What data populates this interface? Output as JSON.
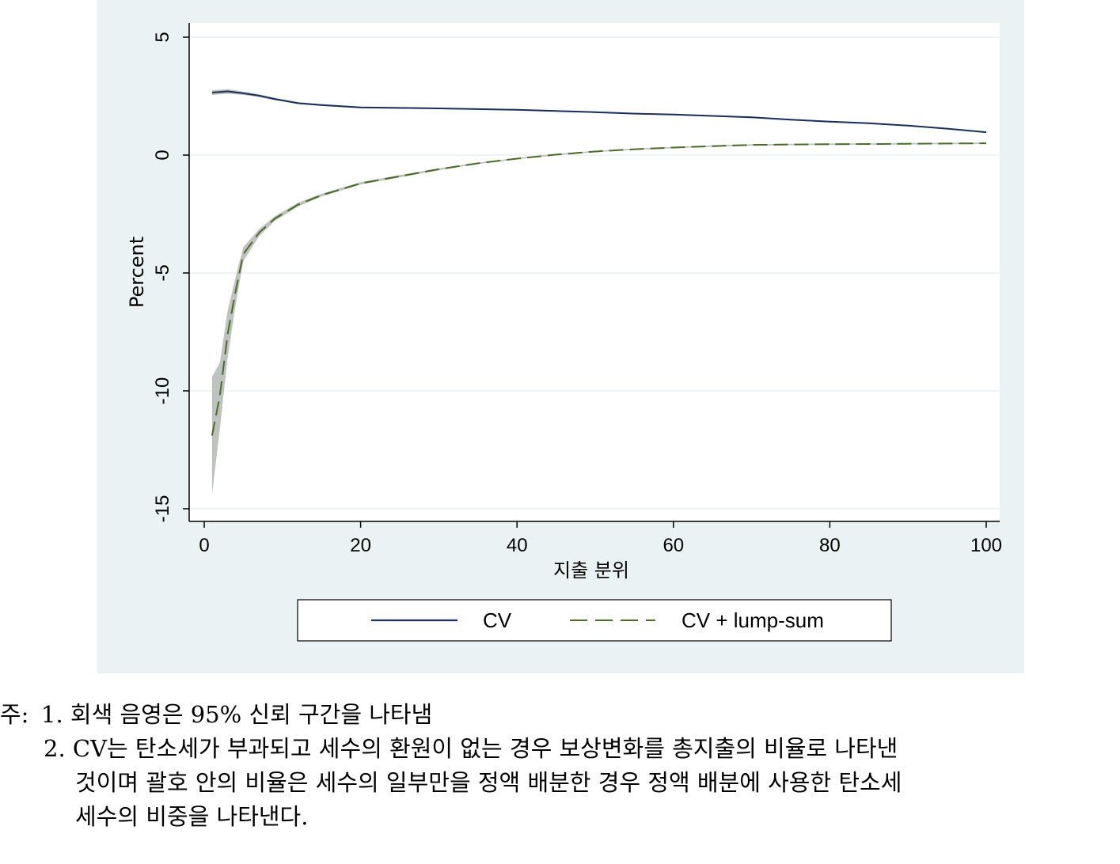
{
  "chart_data": {
    "type": "line",
    "xlabel": "지출 분위",
    "ylabel": "Percent",
    "xlim": [
      0,
      100
    ],
    "ylim": [
      -15,
      5
    ],
    "x_ticks": [
      0,
      20,
      40,
      60,
      80,
      100
    ],
    "y_ticks": [
      5,
      0,
      -5,
      -10,
      -15
    ],
    "x_tick_labels": [
      "0",
      "20",
      "40",
      "60",
      "80",
      "100"
    ],
    "y_tick_labels": [
      "5",
      "0",
      "-5",
      "-10",
      "-15"
    ],
    "grid": true,
    "legend_position": "bottom",
    "series": [
      {
        "name": "CV",
        "color": "#1a2f5a",
        "style": "solid",
        "x": [
          1,
          3,
          5,
          7,
          9,
          12,
          15,
          20,
          25,
          30,
          35,
          40,
          45,
          50,
          55,
          60,
          65,
          70,
          75,
          80,
          85,
          90,
          95,
          100
        ],
        "y": [
          2.65,
          2.7,
          2.62,
          2.52,
          2.38,
          2.2,
          2.12,
          2.02,
          2.0,
          1.98,
          1.95,
          1.92,
          1.87,
          1.82,
          1.76,
          1.72,
          1.66,
          1.6,
          1.5,
          1.42,
          1.35,
          1.25,
          1.12,
          0.97
        ],
        "ci_low": [
          2.55,
          2.6,
          2.55,
          2.46,
          2.33,
          2.16,
          2.08,
          1.99,
          1.97,
          1.95,
          1.92,
          1.89,
          1.84,
          1.79,
          1.73,
          1.69,
          1.63,
          1.57,
          1.47,
          1.39,
          1.32,
          1.22,
          1.09,
          0.94
        ],
        "ci_high": [
          2.75,
          2.8,
          2.69,
          2.58,
          2.43,
          2.24,
          2.16,
          2.05,
          2.03,
          2.01,
          1.98,
          1.95,
          1.9,
          1.85,
          1.79,
          1.75,
          1.69,
          1.63,
          1.53,
          1.45,
          1.38,
          1.28,
          1.15,
          1.0
        ]
      },
      {
        "name": "CV + lump-sum",
        "color": "#4a6b2a",
        "style": "dashed",
        "x": [
          1,
          2,
          3,
          4,
          5,
          7,
          9,
          12,
          15,
          20,
          25,
          30,
          35,
          40,
          45,
          50,
          55,
          60,
          65,
          70,
          75,
          80,
          85,
          90,
          95,
          100
        ],
        "y": [
          -11.9,
          -10.2,
          -7.6,
          -5.8,
          -4.2,
          -3.3,
          -2.7,
          -2.1,
          -1.7,
          -1.2,
          -0.9,
          -0.6,
          -0.35,
          -0.15,
          0.02,
          0.15,
          0.25,
          0.32,
          0.38,
          0.43,
          0.45,
          0.46,
          0.47,
          0.48,
          0.49,
          0.5
        ],
        "ci_low": [
          -14.4,
          -11.6,
          -8.6,
          -6.4,
          -4.5,
          -3.45,
          -2.8,
          -2.18,
          -1.76,
          -1.25,
          -0.95,
          -0.64,
          -0.38,
          -0.18,
          -0.01,
          0.12,
          0.22,
          0.29,
          0.35,
          0.4,
          0.42,
          0.43,
          0.44,
          0.45,
          0.46,
          0.47
        ],
        "ci_high": [
          -9.4,
          -8.8,
          -6.6,
          -5.2,
          -3.9,
          -3.15,
          -2.6,
          -2.02,
          -1.64,
          -1.15,
          -0.85,
          -0.56,
          -0.32,
          -0.12,
          0.05,
          0.18,
          0.28,
          0.35,
          0.41,
          0.46,
          0.48,
          0.49,
          0.5,
          0.51,
          0.52,
          0.53
        ]
      }
    ],
    "ci_color": "#b4b8b4",
    "plot_background": "#ffffff",
    "panel_background": "#eaf2f3",
    "grid_color": "#e8eef0"
  },
  "legend": {
    "items": [
      {
        "label": "CV"
      },
      {
        "label": "CV + lump-sum"
      }
    ]
  },
  "notes": {
    "prefix": "주:",
    "line1": "1. 회색 음영은 95% 신뢰 구간을 나타냄",
    "line2": "2. CV는 탄소세가 부과되고 세수의 환원이 없는 경우 보상변화를 총지출의 비율로 나타낸",
    "line3": "것이며 괄호 안의 비율은 세수의 일부만을 정액 배분한 경우 정액 배분에 사용한 탄소세",
    "line4": "세수의 비중을 나타낸다."
  }
}
